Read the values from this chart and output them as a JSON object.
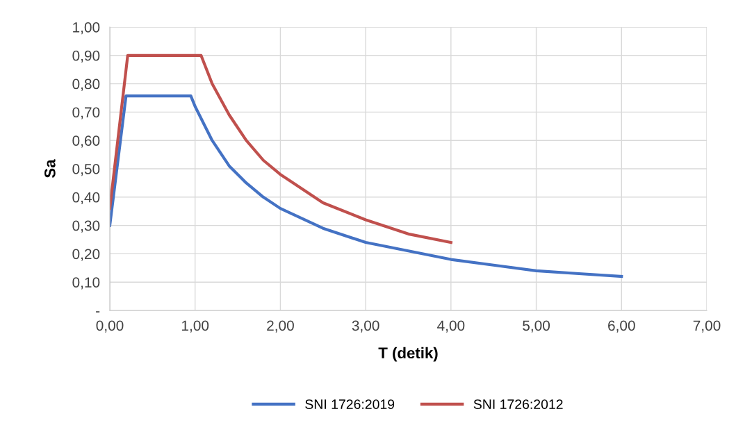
{
  "chart_data": {
    "type": "line",
    "xlabel": "T (detik)",
    "ylabel": "Sa",
    "xlim": [
      0,
      7
    ],
    "ylim": [
      0,
      1
    ],
    "xticks": [
      {
        "value": 0,
        "label": "0,00"
      },
      {
        "value": 1,
        "label": "1,00"
      },
      {
        "value": 2,
        "label": "2,00"
      },
      {
        "value": 3,
        "label": "3,00"
      },
      {
        "value": 4,
        "label": "4,00"
      },
      {
        "value": 5,
        "label": "5,00"
      },
      {
        "value": 6,
        "label": "6,00"
      },
      {
        "value": 7,
        "label": "7,00"
      }
    ],
    "yticks": [
      {
        "value": 0,
        "label": "-"
      },
      {
        "value": 0.1,
        "label": "0,10"
      },
      {
        "value": 0.2,
        "label": "0,20"
      },
      {
        "value": 0.3,
        "label": "0,30"
      },
      {
        "value": 0.4,
        "label": "0,40"
      },
      {
        "value": 0.5,
        "label": "0,50"
      },
      {
        "value": 0.6,
        "label": "0,60"
      },
      {
        "value": 0.7,
        "label": "0,70"
      },
      {
        "value": 0.8,
        "label": "0,80"
      },
      {
        "value": 0.9,
        "label": "0,90"
      },
      {
        "value": 1.0,
        "label": "1,00"
      }
    ],
    "grid": true,
    "legend": "bottom",
    "marker": "none",
    "line_style": "solid",
    "series": [
      {
        "name": "SNI 1726:2019",
        "color": "#4472c4",
        "x": [
          0,
          0.19,
          0.95,
          1.0,
          1.2,
          1.4,
          1.6,
          1.8,
          2.0,
          2.5,
          3.0,
          3.5,
          4.0,
          4.5,
          5.0,
          5.5,
          6.0
        ],
        "values": [
          0.3,
          0.757,
          0.757,
          0.72,
          0.6,
          0.51,
          0.45,
          0.4,
          0.36,
          0.29,
          0.24,
          0.21,
          0.18,
          0.16,
          0.14,
          0.13,
          0.12
        ]
      },
      {
        "name": "SNI 1726:2012",
        "color": "#c0504d",
        "x": [
          0,
          0.21,
          1.07,
          1.2,
          1.4,
          1.6,
          1.8,
          2.0,
          2.5,
          3.0,
          3.5,
          4.0
        ],
        "values": [
          0.36,
          0.9,
          0.9,
          0.8,
          0.69,
          0.6,
          0.53,
          0.48,
          0.38,
          0.32,
          0.27,
          0.24
        ]
      }
    ]
  }
}
